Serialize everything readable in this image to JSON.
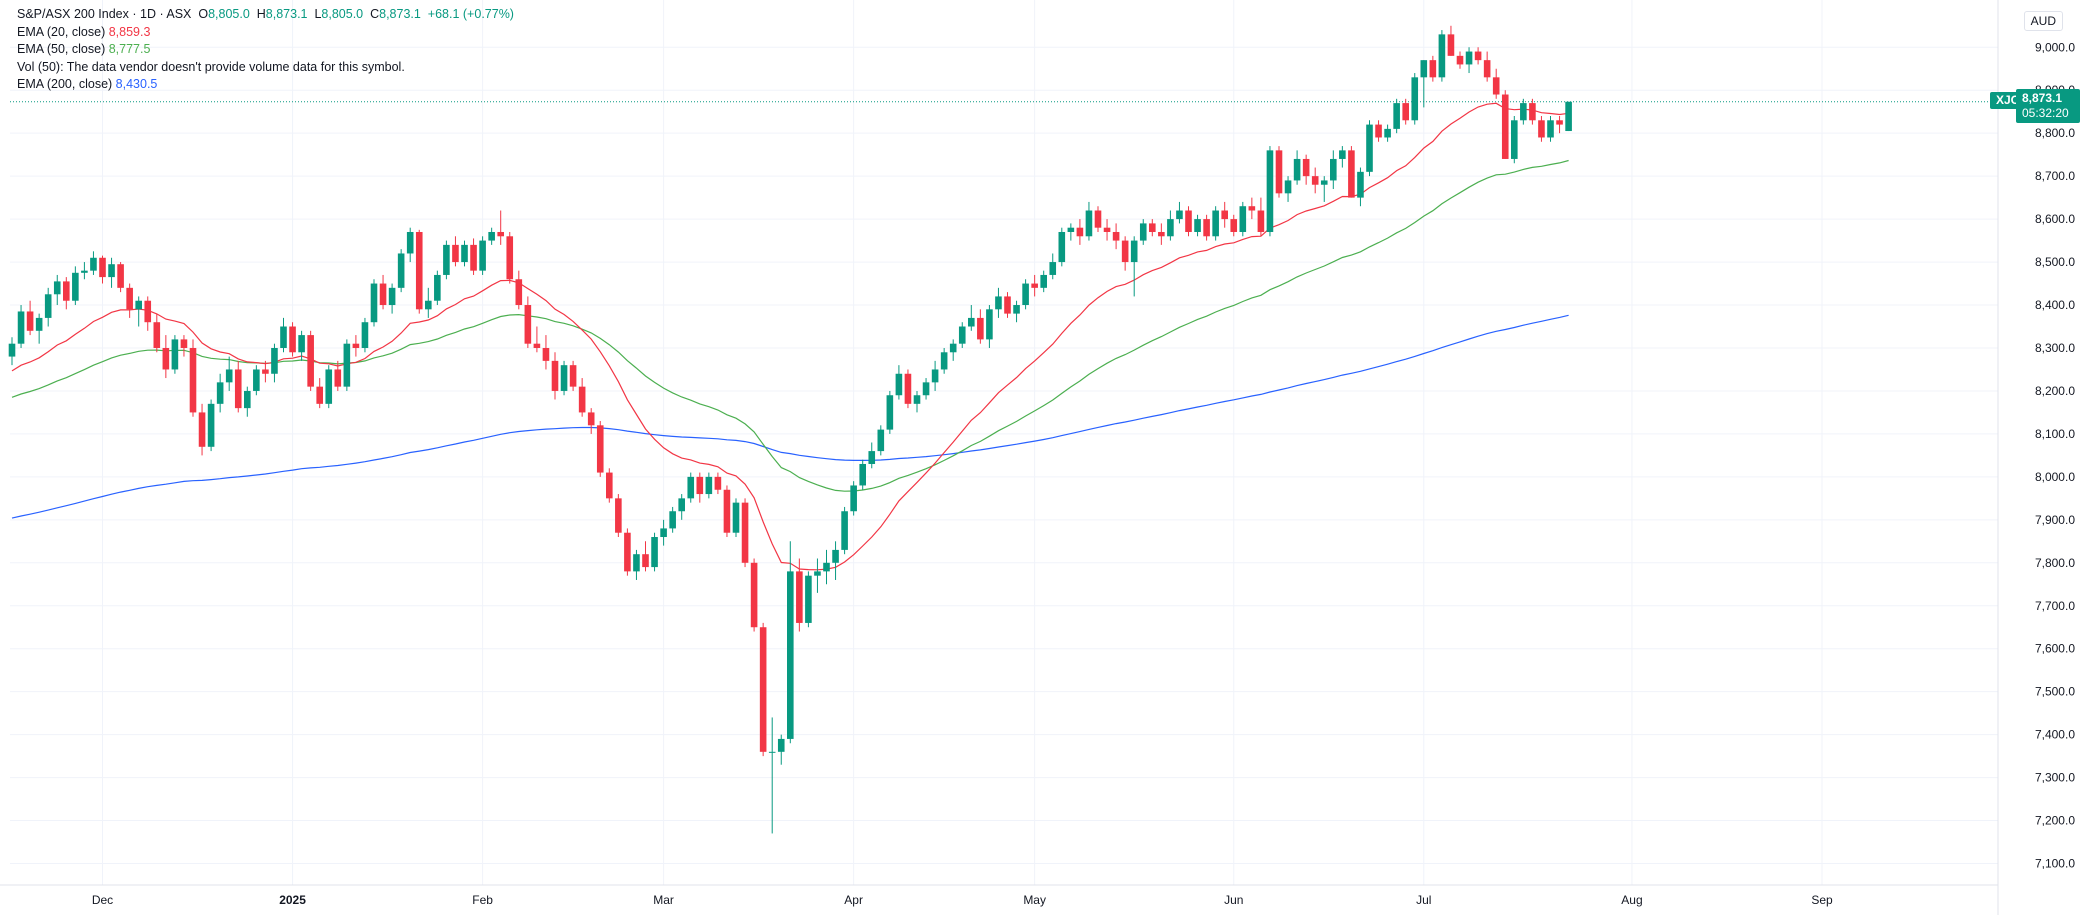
{
  "legend": {
    "title": "S&P/ASX 200 Index · 1D · ASX",
    "open_label": "O",
    "open": "8,805.0",
    "high_label": "H",
    "high": "8,873.1",
    "low_label": "L",
    "low": "8,805.0",
    "close_label": "C",
    "close": "8,873.1",
    "change": "+68.1 (+0.77%)",
    "ema20_label": "EMA (20, close)",
    "ema20_value": "8,859.3",
    "ema50_label": "EMA (50, close)",
    "ema50_value": "8,777.5",
    "vol_text": "Vol (50): The data vendor doesn't provide volume data for this symbol.",
    "ema200_label": "EMA (200, close)",
    "ema200_value": "8,430.5"
  },
  "price_scale": {
    "currency": "AUD",
    "symbol": "XJO",
    "last_price": "8,873.1",
    "countdown": "05:32:20"
  },
  "colors": {
    "up": "#089981",
    "down": "#f23645",
    "ema20": "#f23645",
    "ema50": "#4caf50",
    "ema200": "#2962ff",
    "grid": "#f0f3fa",
    "axis_text": "#131722"
  },
  "chart_data": {
    "type": "candlestick",
    "title": "S&P/ASX 200 Index · 1D · ASX",
    "ylim": [
      7050,
      9110
    ],
    "y_ticks": [
      7100,
      7200,
      7300,
      7400,
      7500,
      7600,
      7700,
      7800,
      7900,
      8000,
      8100,
      8200,
      8300,
      8400,
      8500,
      8600,
      8700,
      8800,
      8900,
      9000
    ],
    "y_tick_labels": [
      "7,100.0",
      "7,200.0",
      "7,300.0",
      "7,400.0",
      "7,500.0",
      "7,600.0",
      "7,700.0",
      "7,800.0",
      "7,900.0",
      "8,000.0",
      "8,100.0",
      "8,200.0",
      "8,300.0",
      "8,400.0",
      "8,500.0",
      "8,600.0",
      "8,700.0",
      "8,800.0",
      "8,900.0",
      "9,000.0"
    ],
    "x_labels": [
      {
        "label": "Dec",
        "bar": 10
      },
      {
        "label": "2025",
        "bar": 31
      },
      {
        "label": "Feb",
        "bar": 52
      },
      {
        "label": "Mar",
        "bar": 72
      },
      {
        "label": "Apr",
        "bar": 93
      },
      {
        "label": "May",
        "bar": 113
      },
      {
        "label": "Jun",
        "bar": 135
      },
      {
        "label": "Jul",
        "bar": 156
      },
      {
        "label": "Aug",
        "bar": 179
      },
      {
        "label": "Sep",
        "bar": 200
      }
    ],
    "grid": true,
    "ohlc": [
      [
        8280,
        8325,
        8260,
        8310
      ],
      [
        8310,
        8400,
        8300,
        8385
      ],
      [
        8385,
        8410,
        8330,
        8340
      ],
      [
        8340,
        8380,
        8310,
        8370
      ],
      [
        8370,
        8440,
        8350,
        8425
      ],
      [
        8425,
        8470,
        8400,
        8455
      ],
      [
        8455,
        8465,
        8390,
        8410
      ],
      [
        8410,
        8490,
        8400,
        8475
      ],
      [
        8475,
        8500,
        8460,
        8480
      ],
      [
        8480,
        8525,
        8470,
        8510
      ],
      [
        8510,
        8515,
        8450,
        8465
      ],
      [
        8465,
        8510,
        8440,
        8495
      ],
      [
        8495,
        8500,
        8430,
        8440
      ],
      [
        8440,
        8450,
        8370,
        8390
      ],
      [
        8390,
        8420,
        8350,
        8410
      ],
      [
        8410,
        8420,
        8340,
        8360
      ],
      [
        8360,
        8380,
        8290,
        8300
      ],
      [
        8300,
        8330,
        8230,
        8250
      ],
      [
        8250,
        8330,
        8240,
        8320
      ],
      [
        8320,
        8330,
        8280,
        8300
      ],
      [
        8300,
        8320,
        8140,
        8150
      ],
      [
        8150,
        8170,
        8050,
        8070
      ],
      [
        8070,
        8180,
        8060,
        8170
      ],
      [
        8170,
        8240,
        8150,
        8220
      ],
      [
        8220,
        8280,
        8200,
        8250
      ],
      [
        8250,
        8270,
        8150,
        8160
      ],
      [
        8160,
        8210,
        8140,
        8200
      ],
      [
        8200,
        8260,
        8190,
        8250
      ],
      [
        8250,
        8270,
        8220,
        8240
      ],
      [
        8240,
        8310,
        8220,
        8300
      ],
      [
        8300,
        8370,
        8290,
        8350
      ],
      [
        8350,
        8360,
        8280,
        8290
      ],
      [
        8290,
        8340,
        8270,
        8330
      ],
      [
        8330,
        8340,
        8200,
        8210
      ],
      [
        8210,
        8230,
        8160,
        8170
      ],
      [
        8170,
        8260,
        8160,
        8250
      ],
      [
        8250,
        8270,
        8200,
        8210
      ],
      [
        8210,
        8320,
        8200,
        8310
      ],
      [
        8310,
        8330,
        8280,
        8300
      ],
      [
        8300,
        8370,
        8290,
        8360
      ],
      [
        8360,
        8460,
        8350,
        8450
      ],
      [
        8450,
        8470,
        8390,
        8400
      ],
      [
        8400,
        8450,
        8380,
        8440
      ],
      [
        8440,
        8530,
        8430,
        8520
      ],
      [
        8520,
        8580,
        8500,
        8570
      ],
      [
        8570,
        8575,
        8380,
        8390
      ],
      [
        8390,
        8440,
        8370,
        8410
      ],
      [
        8410,
        8480,
        8400,
        8470
      ],
      [
        8470,
        8550,
        8460,
        8540
      ],
      [
        8540,
        8560,
        8490,
        8500
      ],
      [
        8500,
        8550,
        8490,
        8540
      ],
      [
        8540,
        8555,
        8470,
        8480
      ],
      [
        8480,
        8560,
        8470,
        8550
      ],
      [
        8550,
        8580,
        8540,
        8570
      ],
      [
        8570,
        8620,
        8540,
        8560
      ],
      [
        8560,
        8570,
        8450,
        8460
      ],
      [
        8460,
        8480,
        8390,
        8400
      ],
      [
        8400,
        8420,
        8300,
        8310
      ],
      [
        8310,
        8350,
        8290,
        8300
      ],
      [
        8300,
        8330,
        8250,
        8270
      ],
      [
        8270,
        8290,
        8180,
        8200
      ],
      [
        8200,
        8270,
        8190,
        8260
      ],
      [
        8260,
        8270,
        8200,
        8210
      ],
      [
        8210,
        8230,
        8140,
        8150
      ],
      [
        8150,
        8160,
        8100,
        8120
      ],
      [
        8120,
        8130,
        8000,
        8010
      ],
      [
        8010,
        8020,
        7940,
        7950
      ],
      [
        7950,
        7960,
        7860,
        7870
      ],
      [
        7870,
        7880,
        7770,
        7780
      ],
      [
        7780,
        7830,
        7760,
        7820
      ],
      [
        7820,
        7850,
        7780,
        7790
      ],
      [
        7790,
        7870,
        7780,
        7860
      ],
      [
        7860,
        7900,
        7840,
        7880
      ],
      [
        7880,
        7930,
        7870,
        7920
      ],
      [
        7920,
        7960,
        7900,
        7950
      ],
      [
        7950,
        8010,
        7940,
        8000
      ],
      [
        8000,
        8010,
        7940,
        7960
      ],
      [
        7960,
        8010,
        7950,
        8000
      ],
      [
        8000,
        8010,
        7960,
        7970
      ],
      [
        7970,
        7980,
        7860,
        7870
      ],
      [
        7870,
        7950,
        7860,
        7940
      ],
      [
        7940,
        7950,
        7790,
        7800
      ],
      [
        7800,
        7810,
        7640,
        7650
      ],
      [
        7650,
        7660,
        7350,
        7360
      ],
      [
        7360,
        7440,
        7170,
        7360
      ],
      [
        7360,
        7400,
        7330,
        7390
      ],
      [
        7390,
        7850,
        7380,
        7780
      ],
      [
        7780,
        7810,
        7640,
        7660
      ],
      [
        7660,
        7780,
        7650,
        7770
      ],
      [
        7770,
        7810,
        7730,
        7780
      ],
      [
        7780,
        7830,
        7750,
        7800
      ],
      [
        7800,
        7850,
        7760,
        7830
      ],
      [
        7830,
        7930,
        7820,
        7920
      ],
      [
        7920,
        7990,
        7910,
        7980
      ],
      [
        7980,
        8040,
        7970,
        8030
      ],
      [
        8030,
        8080,
        8020,
        8060
      ],
      [
        8060,
        8120,
        8050,
        8110
      ],
      [
        8110,
        8200,
        8100,
        8190
      ],
      [
        8190,
        8260,
        8180,
        8240
      ],
      [
        8240,
        8250,
        8160,
        8170
      ],
      [
        8170,
        8200,
        8150,
        8190
      ],
      [
        8190,
        8230,
        8180,
        8220
      ],
      [
        8220,
        8270,
        8200,
        8250
      ],
      [
        8250,
        8300,
        8240,
        8290
      ],
      [
        8290,
        8320,
        8270,
        8310
      ],
      [
        8310,
        8360,
        8300,
        8350
      ],
      [
        8350,
        8400,
        8340,
        8370
      ],
      [
        8370,
        8390,
        8310,
        8320
      ],
      [
        8320,
        8400,
        8300,
        8390
      ],
      [
        8390,
        8440,
        8370,
        8420
      ],
      [
        8420,
        8430,
        8370,
        8380
      ],
      [
        8380,
        8410,
        8360,
        8400
      ],
      [
        8400,
        8460,
        8390,
        8450
      ],
      [
        8450,
        8470,
        8420,
        8440
      ],
      [
        8440,
        8480,
        8430,
        8470
      ],
      [
        8470,
        8520,
        8460,
        8500
      ],
      [
        8500,
        8580,
        8490,
        8570
      ],
      [
        8570,
        8590,
        8550,
        8580
      ],
      [
        8580,
        8600,
        8540,
        8560
      ],
      [
        8560,
        8640,
        8550,
        8620
      ],
      [
        8620,
        8630,
        8570,
        8580
      ],
      [
        8580,
        8600,
        8550,
        8570
      ],
      [
        8570,
        8590,
        8530,
        8550
      ],
      [
        8550,
        8560,
        8480,
        8500
      ],
      [
        8500,
        8560,
        8420,
        8550
      ],
      [
        8550,
        8600,
        8540,
        8590
      ],
      [
        8590,
        8600,
        8560,
        8570
      ],
      [
        8570,
        8590,
        8540,
        8560
      ],
      [
        8560,
        8620,
        8550,
        8600
      ],
      [
        8600,
        8640,
        8590,
        8620
      ],
      [
        8620,
        8630,
        8560,
        8570
      ],
      [
        8570,
        8610,
        8560,
        8600
      ],
      [
        8600,
        8610,
        8550,
        8560
      ],
      [
        8560,
        8630,
        8550,
        8620
      ],
      [
        8620,
        8640,
        8580,
        8600
      ],
      [
        8600,
        8610,
        8560,
        8570
      ],
      [
        8570,
        8640,
        8560,
        8630
      ],
      [
        8630,
        8650,
        8600,
        8620
      ],
      [
        8620,
        8650,
        8560,
        8570
      ],
      [
        8570,
        8770,
        8560,
        8760
      ],
      [
        8760,
        8770,
        8650,
        8660
      ],
      [
        8660,
        8700,
        8640,
        8690
      ],
      [
        8690,
        8760,
        8680,
        8740
      ],
      [
        8740,
        8750,
        8680,
        8700
      ],
      [
        8700,
        8720,
        8660,
        8680
      ],
      [
        8680,
        8700,
        8640,
        8690
      ],
      [
        8690,
        8760,
        8670,
        8740
      ],
      [
        8740,
        8770,
        8720,
        8760
      ],
      [
        8760,
        8770,
        8650,
        8650
      ],
      [
        8650,
        8720,
        8630,
        8710
      ],
      [
        8710,
        8830,
        8700,
        8820
      ],
      [
        8820,
        8830,
        8780,
        8790
      ],
      [
        8790,
        8820,
        8780,
        8810
      ],
      [
        8810,
        8880,
        8800,
        8870
      ],
      [
        8870,
        8880,
        8820,
        8830
      ],
      [
        8830,
        8940,
        8820,
        8930
      ],
      [
        8930,
        8970,
        8860,
        8970
      ],
      [
        8970,
        8980,
        8920,
        8930
      ],
      [
        8930,
        9040,
        8920,
        9030
      ],
      [
        9030,
        9050,
        8980,
        8980
      ],
      [
        8980,
        8990,
        8950,
        8960
      ],
      [
        8960,
        9000,
        8940,
        8990
      ],
      [
        8990,
        9000,
        8960,
        8970
      ],
      [
        8970,
        8990,
        8920,
        8930
      ],
      [
        8930,
        8950,
        8880,
        8890
      ],
      [
        8890,
        8900,
        8740,
        8740
      ],
      [
        8740,
        8840,
        8730,
        8830
      ],
      [
        8830,
        8880,
        8820,
        8870
      ],
      [
        8870,
        8880,
        8820,
        8830
      ],
      [
        8830,
        8840,
        8780,
        8790
      ],
      [
        8790,
        8840,
        8780,
        8830
      ],
      [
        8830,
        8840,
        8800,
        8820
      ],
      [
        8805,
        8873.1,
        8805,
        8873.1
      ]
    ],
    "series": [
      {
        "name": "EMA (20, close)",
        "color": "#f23645",
        "last": 8859.3
      },
      {
        "name": "EMA (50, close)",
        "color": "#4caf50",
        "last": 8777.5
      },
      {
        "name": "EMA (200, close)",
        "color": "#2962ff",
        "last": 8430.5
      }
    ],
    "ema200_start": 7900
  }
}
